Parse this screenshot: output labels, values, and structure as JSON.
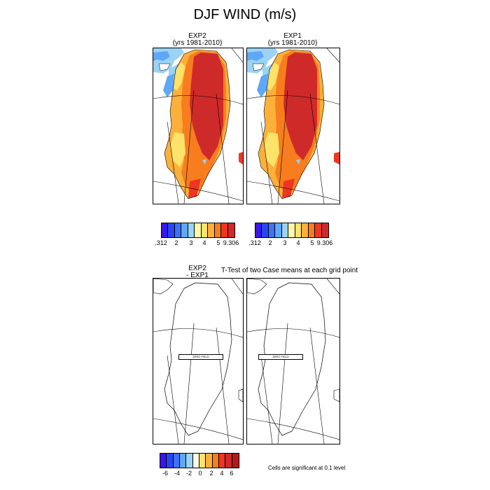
{
  "title": "DJF WIND (m/s)",
  "top_left": {
    "label_line1": "EXP2",
    "label_line2": "(yrs 1981-2010)"
  },
  "top_right": {
    "label_line1": "EXP1",
    "label_line2": "(yrs 1981-2010)"
  },
  "top_colorbar": {
    "colors": [
      "#3a17e6",
      "#2846f2",
      "#3f72f5",
      "#5fa7f8",
      "#9ad3f4",
      "#fff9a8",
      "#fde36a",
      "#fbb03a",
      "#f77d1f",
      "#ee3622",
      "#cf2a2a"
    ],
    "ticks": [
      ".312",
      "2",
      "3",
      "4",
      "5",
      "9.306"
    ]
  },
  "bottom_left": {
    "label_line1": "EXP2",
    "label_line2": "- EXP1",
    "zero_field_text": "ZERO FIELD"
  },
  "bottom_right": {
    "title": "T-Test of two Case means at each grid point",
    "zero_field_text": "ZERO FIELD"
  },
  "bottom_colorbar": {
    "colors": [
      "#3a17e6",
      "#2846f2",
      "#3f72f5",
      "#5fa7f8",
      "#9ad3f4",
      "#fff9e1",
      "#fde36a",
      "#fbb03a",
      "#f77d1f",
      "#ee3622",
      "#cf2a2a",
      "#b01a1a"
    ],
    "ticks": [
      "-6",
      "-4",
      "-2",
      "0",
      "2",
      "4",
      "6"
    ]
  },
  "significance_note": "Cells are significant at 0.1 level"
}
